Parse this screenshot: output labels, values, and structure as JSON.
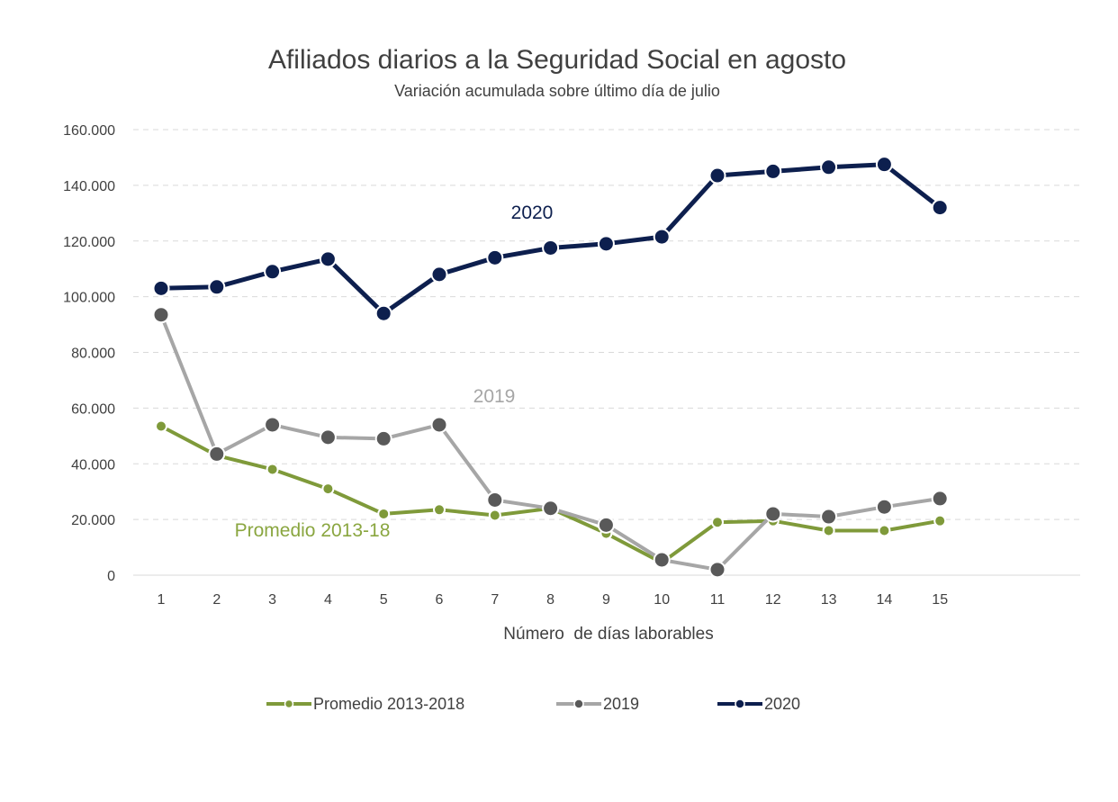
{
  "chart_data": {
    "type": "line",
    "title": "Afiliados diarios a la Seguridad Social en agosto",
    "subtitle": "Variación acumulada sobre último día de julio",
    "xlabel": "Número  de días laborables",
    "ylabel": "",
    "categories": [
      "1",
      "2",
      "3",
      "4",
      "5",
      "6",
      "7",
      "8",
      "9",
      "10",
      "11",
      "12",
      "13",
      "14",
      "15"
    ],
    "ylim": [
      0,
      160000
    ],
    "y_ticks": [
      0,
      20000,
      40000,
      60000,
      80000,
      100000,
      120000,
      140000,
      160000
    ],
    "y_tick_labels": [
      "0",
      "20.000",
      "40.000",
      "60.000",
      "80.000",
      "100.000",
      "120.000",
      "140.000",
      "160.000"
    ],
    "grid": true,
    "legend_position": "bottom",
    "series": [
      {
        "name": "Promedio 2013-2018",
        "color": "#7f9a3a",
        "marker_color": "#7f9a3a",
        "values": [
          53500,
          43000,
          38000,
          31000,
          22000,
          23500,
          21500,
          24000,
          15000,
          4500,
          19000,
          19500,
          16000,
          16000,
          19500
        ]
      },
      {
        "name": "2019",
        "color": "#a6a6a6",
        "marker_color": "#595959",
        "values": [
          93500,
          43500,
          54000,
          49500,
          49000,
          54000,
          27000,
          24000,
          18000,
          5500,
          2000,
          22000,
          21000,
          24500,
          27500
        ]
      },
      {
        "name": "2020",
        "color": "#0d1f4e",
        "marker_color": "#0d1f4e",
        "values": [
          103000,
          103500,
          109000,
          113500,
          94000,
          108000,
          114000,
          117500,
          119000,
          121500,
          143500,
          145000,
          146500,
          147500,
          132000
        ]
      }
    ],
    "annotations": [
      {
        "text": "2020",
        "color": "#0d1f4e"
      },
      {
        "text": "2019",
        "color": "#a6a6a6"
      },
      {
        "text": "Promedio 2013-18",
        "color": "#8aa640"
      }
    ]
  }
}
